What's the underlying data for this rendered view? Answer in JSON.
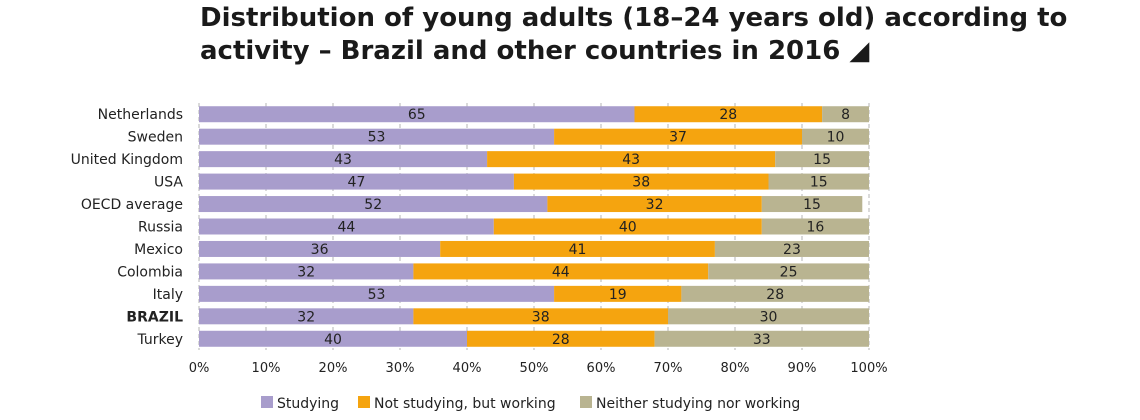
{
  "chart_data": {
    "type": "bar",
    "orientation": "horizontal",
    "stacked": true,
    "title": "Distribution of young adults (18–24 years old) according to activity – Brazil and other countries in 2016 ◢",
    "categories": [
      "Netherlands",
      "Sweden",
      "United Kingdom",
      "USA",
      "OECD average",
      "Russia",
      "Mexico",
      "Colombia",
      "Italy",
      "BRAZIL",
      "Turkey"
    ],
    "highlight_category": "BRAZIL",
    "series": [
      {
        "name": "Studying",
        "color": "#a89dcc",
        "values": [
          65,
          53,
          43,
          47,
          52,
          44,
          36,
          32,
          53,
          32,
          40
        ]
      },
      {
        "name": "Not studying, but working",
        "color": "#f5a40f",
        "values": [
          28,
          37,
          43,
          38,
          32,
          40,
          41,
          44,
          19,
          38,
          28
        ]
      },
      {
        "name": "Neither studying nor working",
        "color": "#b9b491",
        "values": [
          8,
          10,
          15,
          15,
          15,
          16,
          23,
          25,
          28,
          30,
          33
        ]
      }
    ],
    "xlim": [
      0,
      100
    ],
    "xticks": [
      "0%",
      "10%",
      "20%",
      "30%",
      "40%",
      "50%",
      "60%",
      "70%",
      "80%",
      "90%",
      "100%"
    ],
    "grid": true,
    "legend_position": "bottom"
  }
}
